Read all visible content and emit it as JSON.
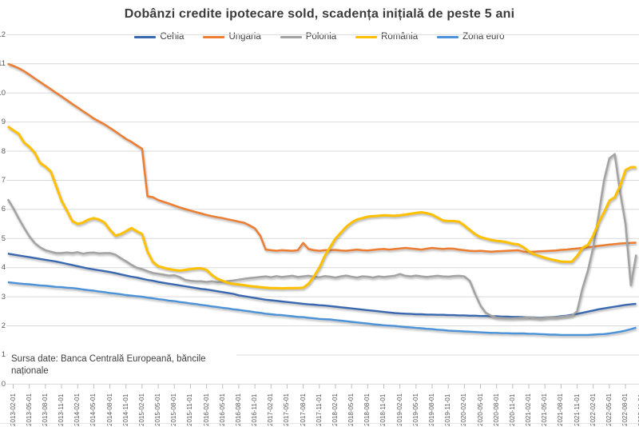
{
  "title": "Dobânzi credite ipotecare sold, scadența inițială de peste 5 ani",
  "source_note": {
    "line1": "Sursa date: Banca Centrală Europeană, băncile",
    "line2": "naționale"
  },
  "colors": {
    "gridline": "#d9d9d9",
    "axis_text": "#595959",
    "title_text": "#3b3b3b"
  },
  "chart_data": {
    "type": "line",
    "title": "Dobânzi credite ipotecare sold, scadența inițială de peste 5 ani",
    "xlabel": "",
    "ylabel": "",
    "x_frequency": "monthly",
    "x_range": [
      "2013-01-01",
      "2022-10-01"
    ],
    "ylim": [
      0,
      12
    ],
    "y_ticks": [
      0,
      1,
      2,
      3,
      4,
      5,
      6,
      7,
      8,
      9,
      10,
      11,
      12
    ],
    "grid": "horizontal",
    "legend_position": "top",
    "x_tick_labels": [
      "2013-02-01",
      "2013-05-01",
      "2013-08-01",
      "2013-11-01",
      "2014-02-01",
      "2014-05-01",
      "2014-08-01",
      "2014-11-01",
      "2015-02-01",
      "2015-05-01",
      "2015-08-01",
      "2015-11-01",
      "2016-02-01",
      "2016-05-01",
      "2016-08-01",
      "2016-11-01",
      "2017-02-01",
      "2017-05-01",
      "2017-08-01",
      "2017-11-01",
      "2018-02-01",
      "2018-05-01",
      "2018-08-01",
      "2018-11-01",
      "2019-02-01",
      "2019-05-01",
      "2019-08-01",
      "2019-11-01",
      "2020-02-01",
      "2020-05-01",
      "2020-08-01",
      "2020-11-01",
      "2021-02-01",
      "2021-05-01",
      "2021-08-01",
      "2021-11-01",
      "2022-02-01",
      "2022-05-01",
      "2022-08-01",
      "2022-11-01"
    ],
    "series": [
      {
        "name": "Cehia",
        "color": "#3a68b0",
        "stroke_width": 2.4,
        "values": [
          4.48,
          4.45,
          4.42,
          4.39,
          4.36,
          4.33,
          4.3,
          4.27,
          4.24,
          4.21,
          4.17,
          4.13,
          4.09,
          4.05,
          4.01,
          3.97,
          3.94,
          3.91,
          3.88,
          3.85,
          3.81,
          3.77,
          3.73,
          3.69,
          3.66,
          3.62,
          3.58,
          3.55,
          3.51,
          3.48,
          3.45,
          3.42,
          3.39,
          3.36,
          3.33,
          3.3,
          3.27,
          3.25,
          3.22,
          3.19,
          3.16,
          3.13,
          3.1,
          3.05,
          3.02,
          2.99,
          2.96,
          2.93,
          2.9,
          2.88,
          2.86,
          2.84,
          2.82,
          2.8,
          2.78,
          2.76,
          2.74,
          2.73,
          2.71,
          2.7,
          2.68,
          2.66,
          2.64,
          2.62,
          2.6,
          2.58,
          2.56,
          2.54,
          2.52,
          2.5,
          2.48,
          2.46,
          2.44,
          2.43,
          2.42,
          2.41,
          2.4,
          2.4,
          2.39,
          2.39,
          2.38,
          2.38,
          2.37,
          2.37,
          2.36,
          2.36,
          2.35,
          2.35,
          2.34,
          2.34,
          2.33,
          2.33,
          2.32,
          2.32,
          2.31,
          2.31,
          2.3,
          2.29,
          2.29,
          2.28,
          2.29,
          2.3,
          2.31,
          2.33,
          2.35,
          2.38,
          2.41,
          2.45,
          2.49,
          2.53,
          2.57,
          2.6,
          2.63,
          2.66,
          2.69,
          2.72,
          2.74,
          2.76
        ]
      },
      {
        "name": "Ungaria",
        "color": "#ed7d31",
        "stroke_width": 2.5,
        "values": [
          11.0,
          10.93,
          10.85,
          10.75,
          10.63,
          10.5,
          10.38,
          10.25,
          10.13,
          10.0,
          9.88,
          9.75,
          9.62,
          9.5,
          9.37,
          9.25,
          9.12,
          9.02,
          8.92,
          8.8,
          8.68,
          8.55,
          8.42,
          8.32,
          8.2,
          8.08,
          6.45,
          6.42,
          6.32,
          6.26,
          6.2,
          6.13,
          6.07,
          6.01,
          5.96,
          5.91,
          5.86,
          5.81,
          5.77,
          5.73,
          5.7,
          5.66,
          5.62,
          5.58,
          5.54,
          5.45,
          5.35,
          5.1,
          4.62,
          4.6,
          4.58,
          4.6,
          4.59,
          4.58,
          4.6,
          4.85,
          4.64,
          4.6,
          4.58,
          4.6,
          4.6,
          4.61,
          4.59,
          4.58,
          4.6,
          4.62,
          4.6,
          4.59,
          4.61,
          4.63,
          4.64,
          4.62,
          4.64,
          4.66,
          4.68,
          4.66,
          4.64,
          4.62,
          4.65,
          4.68,
          4.66,
          4.64,
          4.66,
          4.65,
          4.62,
          4.6,
          4.58,
          4.57,
          4.58,
          4.56,
          4.55,
          4.56,
          4.57,
          4.58,
          4.59,
          4.6,
          4.55,
          4.54,
          4.55,
          4.56,
          4.57,
          4.58,
          4.59,
          4.61,
          4.62,
          4.64,
          4.66,
          4.68,
          4.7,
          4.72,
          4.75,
          4.77,
          4.79,
          4.81,
          4.83,
          4.84,
          4.85,
          4.86
        ]
      },
      {
        "name": "Polonia",
        "color": "#a3a3a3",
        "stroke_width": 2.5,
        "values": [
          6.35,
          6.05,
          5.7,
          5.38,
          5.08,
          4.85,
          4.7,
          4.6,
          4.55,
          4.5,
          4.5,
          4.52,
          4.5,
          4.53,
          4.48,
          4.51,
          4.52,
          4.49,
          4.5,
          4.5,
          4.45,
          4.33,
          4.22,
          4.1,
          4.0,
          3.95,
          3.88,
          3.82,
          3.79,
          3.76,
          3.73,
          3.74,
          3.68,
          3.58,
          3.55,
          3.53,
          3.53,
          3.51,
          3.53,
          3.5,
          3.52,
          3.54,
          3.56,
          3.59,
          3.62,
          3.64,
          3.66,
          3.68,
          3.7,
          3.67,
          3.71,
          3.68,
          3.7,
          3.72,
          3.68,
          3.7,
          3.72,
          3.69,
          3.67,
          3.71,
          3.69,
          3.66,
          3.7,
          3.73,
          3.69,
          3.66,
          3.7,
          3.69,
          3.66,
          3.7,
          3.68,
          3.7,
          3.72,
          3.78,
          3.72,
          3.7,
          3.73,
          3.7,
          3.68,
          3.7,
          3.72,
          3.7,
          3.69,
          3.71,
          3.72,
          3.7,
          3.55,
          3.1,
          2.7,
          2.45,
          2.35,
          2.28,
          2.27,
          2.26,
          2.26,
          2.27,
          2.28,
          2.3,
          2.28,
          2.26,
          2.28,
          2.3,
          2.29,
          2.31,
          2.33,
          2.35,
          2.5,
          3.3,
          3.9,
          4.7,
          5.8,
          7.0,
          7.75,
          7.9,
          6.6,
          5.5,
          3.4,
          4.45
        ]
      },
      {
        "name": "România",
        "color": "#ffc000",
        "stroke_width": 3,
        "values": [
          8.85,
          8.72,
          8.6,
          8.3,
          8.15,
          7.95,
          7.6,
          7.47,
          7.3,
          6.8,
          6.3,
          5.95,
          5.6,
          5.5,
          5.55,
          5.65,
          5.7,
          5.65,
          5.55,
          5.3,
          5.1,
          5.15,
          5.25,
          5.36,
          5.25,
          5.15,
          4.55,
          4.2,
          4.05,
          4.0,
          3.95,
          3.92,
          3.9,
          3.92,
          3.95,
          3.97,
          3.98,
          3.92,
          3.75,
          3.62,
          3.55,
          3.48,
          3.44,
          3.42,
          3.4,
          3.37,
          3.35,
          3.33,
          3.31,
          3.3,
          3.3,
          3.29,
          3.3,
          3.3,
          3.3,
          3.31,
          3.45,
          3.7,
          4.0,
          4.4,
          4.7,
          5.0,
          5.2,
          5.4,
          5.55,
          5.65,
          5.7,
          5.75,
          5.77,
          5.78,
          5.8,
          5.79,
          5.78,
          5.8,
          5.82,
          5.85,
          5.88,
          5.9,
          5.87,
          5.82,
          5.72,
          5.62,
          5.6,
          5.6,
          5.58,
          5.45,
          5.3,
          5.15,
          5.05,
          5.0,
          4.95,
          4.92,
          4.9,
          4.87,
          4.82,
          4.8,
          4.7,
          4.56,
          4.46,
          4.4,
          4.34,
          4.29,
          4.25,
          4.21,
          4.2,
          4.2,
          4.4,
          4.68,
          4.78,
          5.1,
          5.55,
          5.9,
          6.3,
          6.42,
          6.8,
          7.35,
          7.45,
          7.45
        ]
      },
      {
        "name": "Zona euro",
        "color": "#4b92d8",
        "stroke_width": 2.4,
        "values": [
          3.5,
          3.48,
          3.46,
          3.44,
          3.43,
          3.41,
          3.39,
          3.38,
          3.36,
          3.34,
          3.33,
          3.31,
          3.3,
          3.28,
          3.25,
          3.23,
          3.21,
          3.18,
          3.16,
          3.13,
          3.11,
          3.09,
          3.06,
          3.04,
          3.02,
          3.0,
          2.97,
          2.95,
          2.92,
          2.9,
          2.87,
          2.85,
          2.82,
          2.8,
          2.77,
          2.75,
          2.72,
          2.7,
          2.67,
          2.65,
          2.62,
          2.6,
          2.57,
          2.55,
          2.52,
          2.5,
          2.47,
          2.45,
          2.42,
          2.4,
          2.38,
          2.37,
          2.35,
          2.33,
          2.31,
          2.3,
          2.28,
          2.26,
          2.24,
          2.23,
          2.22,
          2.2,
          2.18,
          2.16,
          2.14,
          2.12,
          2.1,
          2.08,
          2.06,
          2.04,
          2.02,
          2.01,
          2.0,
          1.98,
          1.96,
          1.95,
          1.93,
          1.92,
          1.9,
          1.89,
          1.87,
          1.86,
          1.84,
          1.83,
          1.82,
          1.81,
          1.8,
          1.79,
          1.78,
          1.77,
          1.76,
          1.76,
          1.75,
          1.75,
          1.74,
          1.74,
          1.74,
          1.73,
          1.73,
          1.72,
          1.71,
          1.7,
          1.7,
          1.69,
          1.69,
          1.69,
          1.69,
          1.69,
          1.69,
          1.7,
          1.71,
          1.72,
          1.74,
          1.77,
          1.8,
          1.84,
          1.89,
          1.94
        ]
      }
    ]
  }
}
